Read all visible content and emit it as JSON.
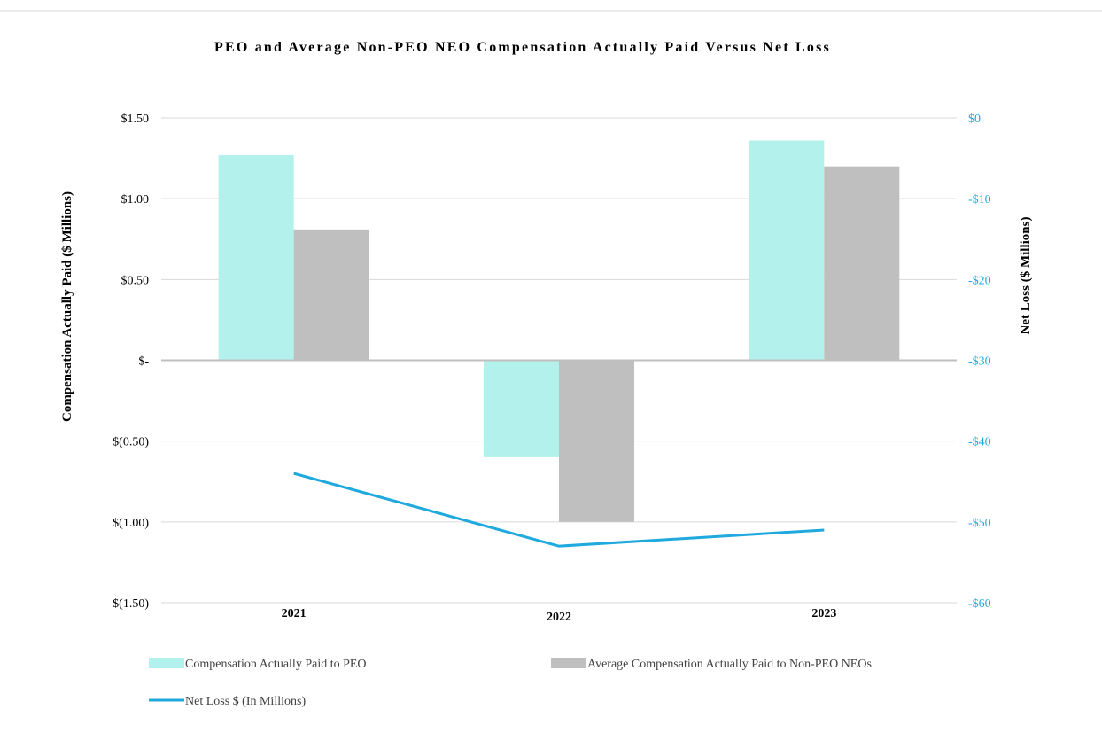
{
  "chart_data": {
    "type": "bar",
    "title": "PEO and Average Non-PEO NEO Compensation Actually Paid Versus Net Loss",
    "categories": [
      "2021",
      "2022",
      "2023"
    ],
    "ylabel": "Compensation Actually Paid ($ Millions)",
    "y2label": "Net Loss ($ Millions)",
    "ylim": [
      -1.5,
      1.5
    ],
    "y2lim": [
      -60,
      0
    ],
    "yticks": [
      {
        "value": 1.5,
        "label": "$1.50"
      },
      {
        "value": 1.0,
        "label": "$1.00"
      },
      {
        "value": 0.5,
        "label": "$0.50"
      },
      {
        "value": 0,
        "label": "$-"
      },
      {
        "value": -0.5,
        "label": "$(0.50)"
      },
      {
        "value": -1.0,
        "label": "$(1.00)"
      },
      {
        "value": -1.5,
        "label": "$(1.50)"
      }
    ],
    "y2ticks": [
      {
        "value": 0,
        "label": "$0"
      },
      {
        "value": -10,
        "label": "-$10"
      },
      {
        "value": -20,
        "label": "-$20"
      },
      {
        "value": -30,
        "label": "-$30"
      },
      {
        "value": -40,
        "label": "-$40"
      },
      {
        "value": -50,
        "label": "-$50"
      },
      {
        "value": -60,
        "label": "-$60"
      }
    ],
    "series": [
      {
        "name": "Compensation Actually Paid to PEO",
        "kind": "bar",
        "axis": "left",
        "color": "#b3f2ec",
        "values": [
          1.27,
          -0.6,
          1.36
        ]
      },
      {
        "name": "Average Compensation Actually Paid to Non-PEO NEOs",
        "kind": "bar",
        "axis": "left",
        "color": "#bfbfbf",
        "values": [
          0.81,
          -1.0,
          1.2
        ]
      },
      {
        "name": "Net Loss $ (In Millions)",
        "kind": "line",
        "axis": "right",
        "color": "#1fa9dd",
        "values": [
          -44,
          -53,
          -51
        ]
      }
    ],
    "grid": true,
    "legend_position": "bottom"
  }
}
